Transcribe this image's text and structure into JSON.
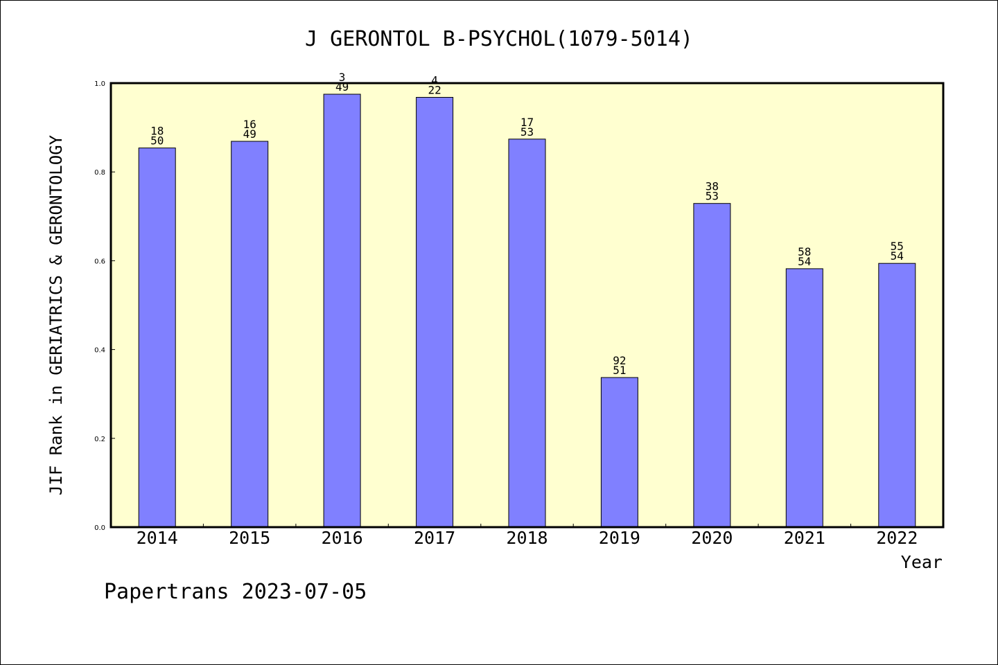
{
  "chart_data": {
    "type": "bar",
    "title": "J GERONTOL B-PSYCHOL(1079-5014)",
    "xlabel": "Year",
    "ylabel": "JIF Rank in GERIATRICS & GERONTOLOGY",
    "ylim": [
      0,
      1.0
    ],
    "yticks": [
      "0.0",
      "0.2",
      "0.4",
      "0.6",
      "0.8",
      "1.0"
    ],
    "categories": [
      "2014",
      "2015",
      "2016",
      "2017",
      "2018",
      "2019",
      "2020",
      "2021",
      "2022"
    ],
    "values": [
      0.854,
      0.869,
      0.975,
      0.968,
      0.874,
      0.337,
      0.729,
      0.582,
      0.594
    ],
    "labels_top": [
      "18",
      "16",
      "3",
      "4",
      "17",
      "92",
      "38",
      "58",
      "55"
    ],
    "labels_bottom": [
      "50",
      "49",
      "49",
      "22",
      "53",
      "51",
      "53",
      "54",
      "54"
    ],
    "grid": false,
    "colors": {
      "bar": "#8080ff",
      "plot_bg": "#ffffd0",
      "frame": "#000000"
    }
  },
  "footer": "Papertrans 2023-07-05"
}
